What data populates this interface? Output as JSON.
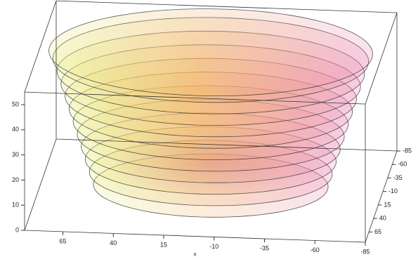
{
  "chart_data": {
    "type": "surface3d",
    "xlabel": "x",
    "xlim": [
      84,
      -85
    ],
    "xticks": [
      65,
      40,
      15,
      -10,
      -35,
      -60,
      -85
    ],
    "ylim": [
      84,
      -85
    ],
    "yticks": [
      -85,
      -60,
      -35,
      -10,
      15,
      40,
      65
    ],
    "zlim": [
      0,
      55
    ],
    "zticks": [
      0,
      10,
      20,
      30,
      40,
      50
    ],
    "rings": {
      "z": [
        2,
        7,
        12,
        17,
        22,
        27,
        32,
        37,
        42,
        47,
        52,
        55
      ],
      "r": [
        58,
        60,
        62,
        64,
        66,
        68,
        70,
        72,
        74,
        76,
        78,
        80
      ]
    },
    "box": true
  }
}
